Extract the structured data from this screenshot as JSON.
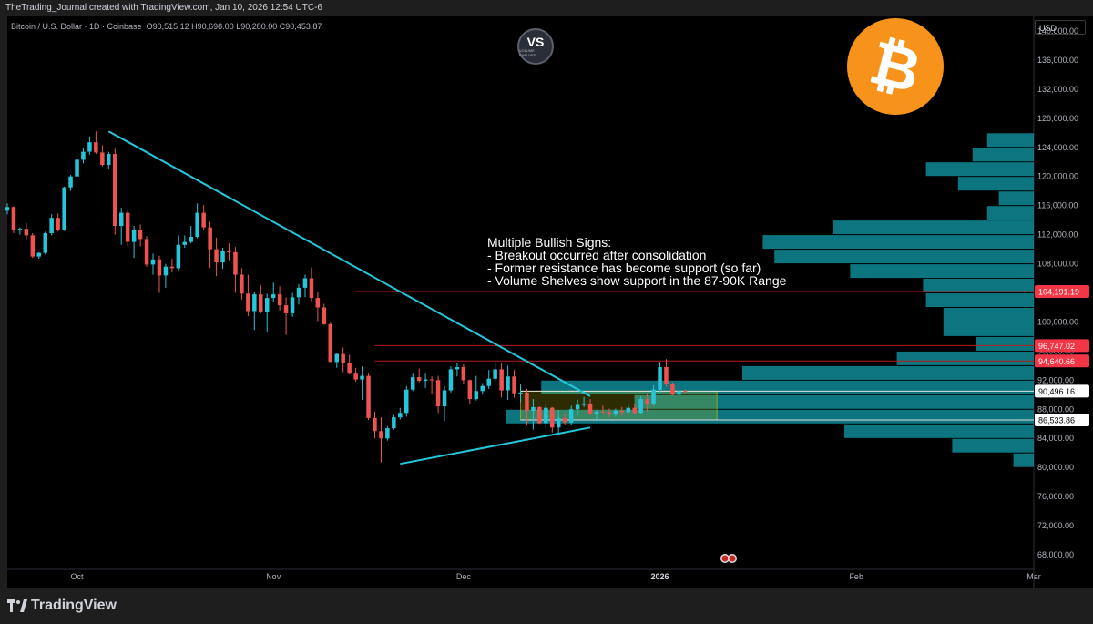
{
  "header": {
    "credit": "TheTrading_Journal created with TradingView.com, Jan 10, 2026 12:54 UTC-6",
    "symbol_line": "Bitcoin / U.S. Dollar · 1D · Coinbase",
    "ohlc": {
      "o_label": "O",
      "o": "90,515.12",
      "h_label": "H",
      "h": "90,698.00",
      "l_label": "L",
      "l": "90,280.00",
      "c_label": "C",
      "c": "90,453.87"
    },
    "currency": "USD"
  },
  "logos": {
    "vs_text": "VS",
    "vs_sub": "VOLUME SHELVES",
    "btc_symbol": "₿",
    "btc_color": "#f7931a"
  },
  "annotation": {
    "title": "Multiple Bullish Signs:",
    "lines": [
      "- Breakout occurred after consolidation",
      "- Former resistance has become support (so far)",
      "- Volume Shelves show support in the 87-90K Range"
    ]
  },
  "footer": {
    "brand": "TradingView"
  },
  "colors": {
    "up": "#26c6da",
    "down": "#ef5350",
    "trendline": "#26c6da",
    "volume_profile": "#0f8a96",
    "consolidation_box": "#c8c800",
    "level_line": "#b71c1c",
    "price_label_red": "#f23645",
    "price_label_white": "#ffffff"
  },
  "chart_data": {
    "type": "candlestick",
    "series_name": "Bitcoin / U.S. Dollar",
    "timeframe": "1D",
    "ylim": [
      66000,
      142000
    ],
    "y_ticks": [
      68000,
      72000,
      76000,
      80000,
      84000,
      88000,
      92000,
      96000,
      100000,
      104000,
      108000,
      112000,
      116000,
      120000,
      124000,
      128000,
      132000,
      136000,
      140000
    ],
    "x_ticks": [
      {
        "label": "Oct",
        "date": "2025-10-01",
        "bold": false
      },
      {
        "label": "Nov",
        "date": "2025-11-01",
        "bold": false
      },
      {
        "label": "Dec",
        "date": "2025-12-01",
        "bold": false
      },
      {
        "label": "2026",
        "date": "2026-01-01",
        "bold": true
      },
      {
        "label": "Feb",
        "date": "2026-02-01",
        "bold": false
      },
      {
        "label": "Mar",
        "date": "2026-03-01",
        "bold": false
      }
    ],
    "x_start": "2025-09-20",
    "x_end": "2026-03-01",
    "first_candle_date": "2025-09-20",
    "candles": [
      [
        115300,
        116300,
        114800,
        115800
      ],
      [
        115800,
        115900,
        112200,
        112700
      ],
      [
        112700,
        113000,
        112000,
        112800
      ],
      [
        112800,
        113600,
        111300,
        111900
      ],
      [
        111900,
        112200,
        108800,
        109000
      ],
      [
        109000,
        109600,
        108700,
        109500
      ],
      [
        109500,
        112400,
        109300,
        112200
      ],
      [
        112200,
        114800,
        111900,
        114300
      ],
      [
        114300,
        114900,
        112400,
        112600
      ],
      [
        112600,
        118600,
        112500,
        118500
      ],
      [
        118500,
        120200,
        118000,
        120000
      ],
      [
        120000,
        122500,
        119300,
        122300
      ],
      [
        122300,
        123900,
        121800,
        123400
      ],
      [
        123400,
        125500,
        123000,
        124700
      ],
      [
        124700,
        126200,
        123100,
        123300
      ],
      [
        123300,
        124300,
        121400,
        121600
      ],
      [
        121600,
        123400,
        121000,
        123100
      ],
      [
        123100,
        123800,
        112000,
        113200
      ],
      [
        113200,
        115700,
        110600,
        115000
      ],
      [
        115000,
        115400,
        110400,
        111000
      ],
      [
        111000,
        113200,
        108800,
        112700
      ],
      [
        112700,
        113400,
        110400,
        111400
      ],
      [
        111400,
        111800,
        107600,
        107900
      ],
      [
        107900,
        109400,
        106500,
        108600
      ],
      [
        108600,
        109100,
        104000,
        106400
      ],
      [
        106400,
        108000,
        104700,
        107600
      ],
      [
        107600,
        108700,
        106800,
        107400
      ],
      [
        107400,
        111900,
        107100,
        110600
      ],
      [
        110600,
        111900,
        110200,
        111000
      ],
      [
        111000,
        113200,
        110800,
        111700
      ],
      [
        111700,
        116300,
        111500,
        115000
      ],
      [
        115000,
        116100,
        112600,
        113000
      ],
      [
        113000,
        113800,
        107400,
        110000
      ],
      [
        110000,
        111600,
        106300,
        108200
      ],
      [
        108200,
        110200,
        107300,
        109700
      ],
      [
        109700,
        110800,
        108500,
        109600
      ],
      [
        109600,
        110300,
        104000,
        106500
      ],
      [
        106500,
        107400,
        103100,
        103900
      ],
      [
        103900,
        106500,
        100800,
        101500
      ],
      [
        101500,
        104200,
        98900,
        103800
      ],
      [
        103800,
        105100,
        101200,
        101400
      ],
      [
        101400,
        103900,
        98600,
        103300
      ],
      [
        103300,
        105400,
        102700,
        103800
      ],
      [
        103800,
        104900,
        101600,
        102300
      ],
      [
        102300,
        103400,
        98200,
        101200
      ],
      [
        101200,
        104000,
        100700,
        103400
      ],
      [
        103400,
        105200,
        102400,
        104700
      ],
      [
        104700,
        106500,
        103400,
        106000
      ],
      [
        106000,
        107500,
        102900,
        103300
      ],
      [
        103300,
        104100,
        100100,
        102000
      ],
      [
        102000,
        102500,
        99600,
        99700
      ],
      [
        99700,
        99900,
        94600,
        94500
      ],
      [
        94500,
        95700,
        93700,
        95600
      ],
      [
        95600,
        96500,
        93100,
        94300
      ],
      [
        94300,
        95500,
        92800,
        92900
      ],
      [
        92900,
        93700,
        91800,
        92100
      ],
      [
        92100,
        93900,
        89300,
        92600
      ],
      [
        92600,
        92900,
        86500,
        86800
      ],
      [
        86800,
        87700,
        84000,
        85000
      ],
      [
        85000,
        86900,
        80700,
        84000
      ],
      [
        84000,
        85700,
        83700,
        85400
      ],
      [
        85400,
        87200,
        85200,
        86900
      ],
      [
        86900,
        88200,
        86600,
        87500
      ],
      [
        87500,
        91200,
        87000,
        90700
      ],
      [
        90700,
        92900,
        90500,
        92400
      ],
      [
        92400,
        93600,
        91700,
        91900
      ],
      [
        91900,
        92900,
        90900,
        92100
      ],
      [
        92100,
        92500,
        90100,
        92000
      ],
      [
        92000,
        92600,
        87500,
        88400
      ],
      [
        88400,
        91200,
        86400,
        90600
      ],
      [
        90600,
        93900,
        90300,
        93500
      ],
      [
        93500,
        94400,
        92500,
        93800
      ],
      [
        93800,
        94200,
        91500,
        92000
      ],
      [
        92000,
        92100,
        88700,
        89400
      ],
      [
        89400,
        92600,
        89200,
        90500
      ],
      [
        90500,
        91600,
        90000,
        91200
      ],
      [
        91200,
        93400,
        90800,
        92200
      ],
      [
        92200,
        94500,
        91800,
        93500
      ],
      [
        93500,
        94300,
        89600,
        90600
      ],
      [
        90600,
        94000,
        89300,
        92500
      ],
      [
        92500,
        93400,
        89600,
        90200
      ],
      [
        90200,
        91400,
        89000,
        90300
      ],
      [
        90300,
        90800,
        85900,
        87800
      ],
      [
        87800,
        89400,
        85200,
        88300
      ],
      [
        88300,
        88400,
        86000,
        86100
      ],
      [
        86100,
        88700,
        85400,
        88200
      ],
      [
        88200,
        88300,
        84800,
        85500
      ],
      [
        85500,
        87900,
        84600,
        86800
      ],
      [
        86800,
        87300,
        85900,
        86200
      ],
      [
        86200,
        88500,
        85800,
        88000
      ],
      [
        88000,
        89300,
        87100,
        88600
      ],
      [
        88600,
        89700,
        88300,
        88800
      ],
      [
        88800,
        89400,
        87200,
        87400
      ],
      [
        87400,
        87900,
        86400,
        87700
      ],
      [
        87700,
        88500,
        87400,
        87600
      ],
      [
        87600,
        88100,
        86900,
        87300
      ],
      [
        87300,
        88100,
        87000,
        87800
      ],
      [
        87800,
        88300,
        87100,
        87600
      ],
      [
        87600,
        88600,
        87500,
        88200
      ],
      [
        88200,
        88700,
        87400,
        87500
      ],
      [
        87500,
        89800,
        87300,
        89400
      ],
      [
        89400,
        90100,
        87700,
        88700
      ],
      [
        88700,
        91300,
        88500,
        90700
      ],
      [
        90700,
        94500,
        90300,
        93800
      ],
      [
        93800,
        94900,
        91100,
        91500
      ],
      [
        91500,
        91700,
        89900,
        90000
      ],
      [
        90000,
        90900,
        89800,
        90500
      ],
      [
        90500,
        90700,
        90300,
        90450
      ]
    ],
    "annotations": {
      "descending_trendline": {
        "from": [
          "2025-10-06",
          126200
        ],
        "to": [
          "2025-12-21",
          89800
        ]
      },
      "ascending_trendline": {
        "from": [
          "2025-11-21",
          80500
        ],
        "to": [
          "2025-12-21",
          85500
        ]
      },
      "consolidation_box": {
        "from": "2025-12-10",
        "to": "2026-01-10",
        "low": 86533.86,
        "high": 90496.16
      },
      "horizontal_levels": [
        {
          "price": 104191.19,
          "from": "2025-11-14",
          "label": "104,191.19",
          "style": "red"
        },
        {
          "price": 96747.02,
          "from": "2025-11-17",
          "label": "96,747.02",
          "style": "red"
        },
        {
          "price": 94640.66,
          "from": "2025-11-17",
          "label": "94,640.66",
          "style": "red"
        },
        {
          "price": 90496.16,
          "from": "2025-12-10",
          "label": "90,496.16",
          "style": "white"
        },
        {
          "price": 86533.86,
          "from": "2025-12-10",
          "label": "86,533.86",
          "style": "white"
        }
      ]
    },
    "volume_profile": {
      "bin_size": 2000,
      "bins": [
        {
          "price": 125000,
          "volume": 0.16
        },
        {
          "price": 123000,
          "volume": 0.21
        },
        {
          "price": 121000,
          "volume": 0.37
        },
        {
          "price": 119000,
          "volume": 0.26
        },
        {
          "price": 117000,
          "volume": 0.12
        },
        {
          "price": 115000,
          "volume": 0.16
        },
        {
          "price": 113000,
          "volume": 0.69
        },
        {
          "price": 111000,
          "volume": 0.93
        },
        {
          "price": 109000,
          "volume": 0.89
        },
        {
          "price": 107000,
          "volume": 0.63
        },
        {
          "price": 105000,
          "volume": 0.38
        },
        {
          "price": 103000,
          "volume": 0.37
        },
        {
          "price": 101000,
          "volume": 0.31
        },
        {
          "price": 99000,
          "volume": 0.31
        },
        {
          "price": 97000,
          "volume": 0.2
        },
        {
          "price": 95000,
          "volume": 0.47
        },
        {
          "price": 93000,
          "volume": 1.0
        },
        {
          "price": 91000,
          "volume": 1.69
        },
        {
          "price": 89000,
          "volume": 1.37
        },
        {
          "price": 87000,
          "volume": 1.81
        },
        {
          "price": 85000,
          "volume": 0.65
        },
        {
          "price": 83000,
          "volume": 0.28
        },
        {
          "price": 81000,
          "volume": 0.07
        }
      ]
    }
  }
}
